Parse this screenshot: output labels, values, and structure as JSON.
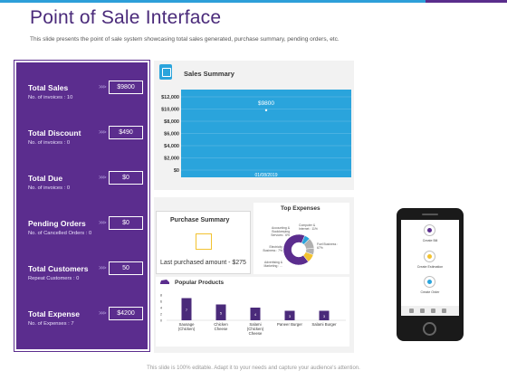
{
  "header": {
    "title": "Point of Sale Interface",
    "subtitle": "This slide presents the point of sale system showcasing total sales generated, purchase summary, pending orders, etc."
  },
  "kpis": [
    {
      "title": "Total Sales",
      "sub": "No. of invoices : 10",
      "value": "$9800"
    },
    {
      "title": "Total Discount",
      "sub": "No. of invoices : 0",
      "value": "$490"
    },
    {
      "title": "Total Due",
      "sub": "No. of invoices : 0",
      "value": "$0"
    },
    {
      "title": "Pending Orders",
      "sub": "No. of Cancelled Orders : 0",
      "value": "$0"
    },
    {
      "title": "Total Customers",
      "sub": "Repeat Customers : 0",
      "value": "50"
    },
    {
      "title": "Total Expense",
      "sub": "No. of Expenses : 7",
      "value": "$4200"
    }
  ],
  "kpi_arrow": ">>>",
  "sales_summary": {
    "label": "Sales Summary",
    "icon": "receipt-icon"
  },
  "purchase_summary": {
    "title": "Purchase Summary",
    "text": "Last purchased amount - $275",
    "icon": "square-icon"
  },
  "top_expenses": {
    "title": "Top Expenses",
    "labels": [
      "Accounting & Bookkeeping Services : 6%",
      "Computer & Internet : 11%",
      "Electricity Business : 7%",
      "Advertising & Marketing : ...",
      "Fuel Business : 67%"
    ]
  },
  "popular_products": {
    "title": "Popular Products",
    "icon": "car-icon"
  },
  "phone": {
    "items": [
      "Create Bill",
      "Create Estimation",
      "Create Order"
    ]
  },
  "footer": "This slide is 100% editable. Adapt it to your needs and capture your audience's attention.",
  "colors": {
    "purple": "#5b2d8e",
    "blue": "#2aa4dc",
    "yellow": "#f2c230",
    "pie_purple": "#5b2d8e",
    "pie_yellow": "#f2c230",
    "pie_blue": "#2aa4dc",
    "pie_gray": "#b0b0b0"
  },
  "chart_data": [
    {
      "type": "line",
      "title": "",
      "x": [
        "01/08/2019"
      ],
      "series": [
        {
          "values": [
            9800
          ]
        }
      ],
      "data_labels": [
        "$9800"
      ],
      "ylim": [
        0,
        12000
      ],
      "yticks": [
        "$0",
        "$2,000",
        "$4,000",
        "$6,000",
        "$8,000",
        "$10,000",
        "$12,000"
      ],
      "ytick_values": [
        0,
        2000,
        4000,
        6000,
        8000,
        10000,
        12000
      ]
    },
    {
      "type": "pie",
      "title": "Top Expenses",
      "categories": [
        "Accounting & Bookkeeping Services",
        "Computer & Internet",
        "Electricity Business",
        "Advertising & Marketing",
        "Fuel Business"
      ],
      "values": [
        6,
        11,
        7,
        9,
        67
      ]
    },
    {
      "type": "bar",
      "title": "Popular Products",
      "categories": [
        "Sausage (Chicken)",
        "Chicken Cheese",
        "Salami (Chicken) Cheese",
        "Paneer Burger",
        "Salami Burger"
      ],
      "values": [
        7,
        5,
        4,
        3,
        3
      ],
      "yticks": [
        "0",
        "2",
        "4",
        "6",
        "8"
      ],
      "ylim": [
        0,
        8
      ]
    }
  ]
}
